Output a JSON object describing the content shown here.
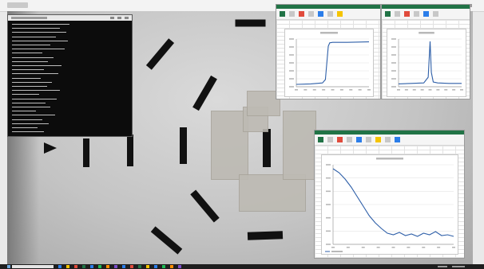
{
  "screen": {
    "background": "#e9e9e9"
  },
  "camera_feed": {
    "background": "#c4c4c4",
    "bar_color": "#111111",
    "tape_color": "#bdbab3"
  },
  "console_window": {
    "background": "#0c0c0c",
    "text_color": "#bdbdbd"
  },
  "excel_windows": [
    {
      "title_bar_color": "#217346",
      "chart_data": {
        "type": "line",
        "title": "",
        "xlabel": "",
        "ylabel": "",
        "grid": true,
        "legend": "none",
        "xlim": [
          0,
          1
        ],
        "ylim": [
          0,
          1
        ],
        "series": [
          {
            "color": "#2e5fa8",
            "x": [
              0,
              0.2,
              0.36,
              0.4,
              0.42,
              0.44,
              0.46,
              0.5,
              0.7,
              1.0
            ],
            "y": [
              0.05,
              0.06,
              0.08,
              0.15,
              0.5,
              0.85,
              0.92,
              0.93,
              0.93,
              0.94
            ]
          }
        ]
      }
    },
    {
      "title_bar_color": "#217346",
      "chart_data": {
        "type": "line",
        "title": "",
        "xlabel": "",
        "ylabel": "",
        "grid": true,
        "legend": "none",
        "xlim": [
          0,
          1
        ],
        "ylim": [
          0,
          1
        ],
        "series": [
          {
            "color": "#2e5fa8",
            "x": [
              0,
              0.2,
              0.4,
              0.47,
              0.5,
              0.52,
              0.55,
              0.62,
              0.8,
              1.0
            ],
            "y": [
              0.06,
              0.07,
              0.08,
              0.2,
              0.95,
              0.3,
              0.1,
              0.08,
              0.07,
              0.07
            ]
          }
        ]
      }
    },
    {
      "title_bar_color": "#217346",
      "chart_data": {
        "type": "line",
        "title": "",
        "xlabel": "",
        "ylabel": "",
        "grid": true,
        "legend": "bottom-left",
        "xlim": [
          0,
          1
        ],
        "ylim": [
          0,
          1
        ],
        "series": [
          {
            "color": "#2e5fa8",
            "x": [
              0,
              0.05,
              0.1,
              0.15,
              0.2,
              0.25,
              0.3,
              0.35,
              0.4,
              0.45,
              0.5,
              0.55,
              0.6,
              0.65,
              0.7,
              0.75,
              0.8,
              0.85,
              0.9,
              0.95,
              1.0
            ],
            "y": [
              0.95,
              0.9,
              0.82,
              0.72,
              0.6,
              0.48,
              0.36,
              0.27,
              0.2,
              0.14,
              0.12,
              0.15,
              0.11,
              0.13,
              0.1,
              0.14,
              0.12,
              0.16,
              0.11,
              0.12,
              0.1
            ]
          }
        ]
      }
    }
  ],
  "taskbar": {
    "background": "#1e1e1e",
    "search_box_color": "#e6e6e6",
    "app_icon_colors": [
      "#2b7de9",
      "#f5c400",
      "#e04b3c",
      "#217346",
      "#2b7de9",
      "#1db954",
      "#ff8c00",
      "#7a4dc9",
      "#2b7de9",
      "#e04b3c",
      "#217346",
      "#f5c400",
      "#2b7de9",
      "#1db954",
      "#ff8c00",
      "#7a4dc9"
    ]
  }
}
